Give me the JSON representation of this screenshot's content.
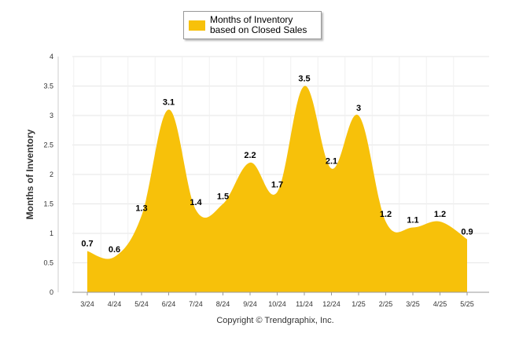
{
  "chart_data": {
    "type": "area",
    "categories": [
      "3/24",
      "4/24",
      "5/24",
      "6/24",
      "7/24",
      "8/24",
      "9/24",
      "10/24",
      "11/24",
      "12/24",
      "1/25",
      "2/25",
      "3/25",
      "4/25",
      "5/25"
    ],
    "series": [
      {
        "name": "Months of Inventory based on Closed Sales",
        "values": [
          0.7,
          0.6,
          1.3,
          3.1,
          1.4,
          1.5,
          2.2,
          1.7,
          3.5,
          2.1,
          3,
          1.2,
          1.1,
          1.2,
          0.9
        ],
        "color": "#F7C10A"
      }
    ],
    "data_labels": [
      "0.7",
      "0.6",
      "1.3",
      "3.1",
      "1.4",
      "1.5",
      "2.2",
      "1.7",
      "3.5",
      "2.1",
      "3",
      "1.2",
      "1.1",
      "1.2",
      "0.9"
    ],
    "ylabel": "Months of Inventory",
    "ylim": [
      0,
      4
    ],
    "yticks": [
      "0",
      "0.5",
      "1",
      "1.5",
      "2",
      "2.5",
      "3",
      "3.5",
      "4"
    ],
    "grid": true,
    "legend_position": "top-center",
    "copyright": "Copyright © Trendgraphix, Inc."
  }
}
